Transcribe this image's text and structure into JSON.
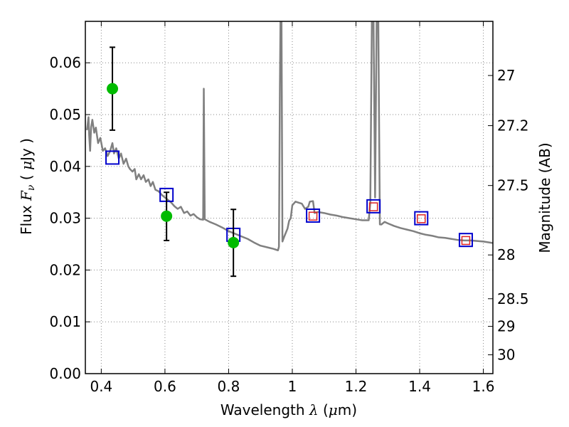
{
  "chart_data": {
    "type": "line",
    "xlabel": {
      "prefix": "Wavelength",
      "symbol": "λ",
      "open": "(",
      "unit_greek": "μ",
      "unit": "m",
      "close": ")"
    },
    "ylabel": {
      "prefix": "Flux",
      "symbol": "F",
      "subscript": "ν",
      "open": "(",
      "unit_greek": "μ",
      "unit": "Jy",
      "close": ")"
    },
    "y2label": "Magnitude (AB)",
    "xlim": [
      0.35,
      1.63
    ],
    "ylim": [
      0.0,
      0.068
    ],
    "grid": true,
    "x_ticks": [
      {
        "value": 0.4,
        "label": "0.4"
      },
      {
        "value": 0.6,
        "label": "0.6"
      },
      {
        "value": 0.8,
        "label": "0.8"
      },
      {
        "value": 1.0,
        "label": "1"
      },
      {
        "value": 1.2,
        "label": "1.2"
      },
      {
        "value": 1.4,
        "label": "1.4"
      },
      {
        "value": 1.6,
        "label": "1.6"
      }
    ],
    "y_ticks": [
      {
        "value": 0.0,
        "label": "0.00"
      },
      {
        "value": 0.01,
        "label": "0.01"
      },
      {
        "value": 0.02,
        "label": "0.02"
      },
      {
        "value": 0.03,
        "label": "0.03"
      },
      {
        "value": 0.04,
        "label": "0.04"
      },
      {
        "value": 0.05,
        "label": "0.05"
      },
      {
        "value": 0.06,
        "label": "0.06"
      }
    ],
    "y2_ticks": [
      {
        "value": 27.0,
        "label": "27"
      },
      {
        "value": 27.2,
        "label": "27.2"
      },
      {
        "value": 27.5,
        "label": "27.5"
      },
      {
        "value": 28.0,
        "label": "28"
      },
      {
        "value": 28.5,
        "label": "28.5"
      },
      {
        "value": 29.0,
        "label": "29"
      },
      {
        "value": 30.0,
        "label": "30"
      }
    ],
    "colors": {
      "spectrum": "#808080",
      "observed": "#00bb00",
      "errorbar": "#000000",
      "model_outer": "#0000cc",
      "model_inner": "#dd2222",
      "grid": "#888888"
    },
    "series": [
      {
        "kind": "spectrum",
        "points": [
          [
            0.355,
            0.047
          ],
          [
            0.36,
            0.0495
          ],
          [
            0.362,
            0.046
          ],
          [
            0.365,
            0.043
          ],
          [
            0.368,
            0.0475
          ],
          [
            0.372,
            0.049
          ],
          [
            0.378,
            0.0465
          ],
          [
            0.383,
            0.0475
          ],
          [
            0.39,
            0.0445
          ],
          [
            0.397,
            0.0455
          ],
          [
            0.405,
            0.043
          ],
          [
            0.412,
            0.0435
          ],
          [
            0.42,
            0.042
          ],
          [
            0.428,
            0.043
          ],
          [
            0.435,
            0.0445
          ],
          [
            0.44,
            0.0425
          ],
          [
            0.447,
            0.0435
          ],
          [
            0.455,
            0.0415
          ],
          [
            0.462,
            0.0425
          ],
          [
            0.47,
            0.0405
          ],
          [
            0.478,
            0.0415
          ],
          [
            0.485,
            0.04
          ],
          [
            0.49,
            0.0395
          ],
          [
            0.498,
            0.039
          ],
          [
            0.505,
            0.0395
          ],
          [
            0.51,
            0.0375
          ],
          [
            0.518,
            0.0385
          ],
          [
            0.525,
            0.0375
          ],
          [
            0.533,
            0.0383
          ],
          [
            0.54,
            0.037
          ],
          [
            0.548,
            0.0375
          ],
          [
            0.555,
            0.0362
          ],
          [
            0.562,
            0.037
          ],
          [
            0.57,
            0.0355
          ],
          [
            0.58,
            0.0352
          ],
          [
            0.59,
            0.0345
          ],
          [
            0.6,
            0.034
          ],
          [
            0.61,
            0.0335
          ],
          [
            0.62,
            0.033
          ],
          [
            0.63,
            0.0323
          ],
          [
            0.64,
            0.0318
          ],
          [
            0.65,
            0.0322
          ],
          [
            0.66,
            0.031
          ],
          [
            0.67,
            0.0313
          ],
          [
            0.68,
            0.0305
          ],
          [
            0.69,
            0.0308
          ],
          [
            0.7,
            0.0302
          ],
          [
            0.71,
            0.0298
          ],
          [
            0.72,
            0.0297
          ],
          [
            0.722,
            0.055
          ],
          [
            0.725,
            0.0298
          ],
          [
            0.74,
            0.0293
          ],
          [
            0.76,
            0.0288
          ],
          [
            0.78,
            0.0282
          ],
          [
            0.8,
            0.0275
          ],
          [
            0.82,
            0.027
          ],
          [
            0.84,
            0.0265
          ],
          [
            0.86,
            0.026
          ],
          [
            0.88,
            0.0253
          ],
          [
            0.9,
            0.0247
          ],
          [
            0.92,
            0.0244
          ],
          [
            0.94,
            0.0241
          ],
          [
            0.955,
            0.0238
          ],
          [
            0.958,
            0.0245
          ],
          [
            0.961,
            0.055
          ],
          [
            0.963,
            0.069
          ],
          [
            0.966,
            0.069
          ],
          [
            0.969,
            0.0255
          ],
          [
            0.975,
            0.0265
          ],
          [
            0.985,
            0.028
          ],
          [
            0.99,
            0.0295
          ],
          [
            0.995,
            0.03
          ],
          [
            1.0,
            0.0325
          ],
          [
            1.01,
            0.0332
          ],
          [
            1.02,
            0.033
          ],
          [
            1.03,
            0.0328
          ],
          [
            1.04,
            0.0318
          ],
          [
            1.05,
            0.0322
          ],
          [
            1.055,
            0.0332
          ],
          [
            1.065,
            0.0333
          ],
          [
            1.07,
            0.031
          ],
          [
            1.08,
            0.0312
          ],
          [
            1.1,
            0.031
          ],
          [
            1.12,
            0.0307
          ],
          [
            1.14,
            0.0305
          ],
          [
            1.16,
            0.0302
          ],
          [
            1.18,
            0.03
          ],
          [
            1.2,
            0.0298
          ],
          [
            1.22,
            0.0296
          ],
          [
            1.24,
            0.0296
          ],
          [
            1.245,
            0.033
          ],
          [
            1.25,
            0.069
          ],
          [
            1.255,
            0.069
          ],
          [
            1.26,
            0.034
          ],
          [
            1.265,
            0.069
          ],
          [
            1.27,
            0.069
          ],
          [
            1.275,
            0.0288
          ],
          [
            1.28,
            0.0288
          ],
          [
            1.29,
            0.0293
          ],
          [
            1.3,
            0.029
          ],
          [
            1.32,
            0.0285
          ],
          [
            1.34,
            0.0281
          ],
          [
            1.36,
            0.0278
          ],
          [
            1.38,
            0.0275
          ],
          [
            1.4,
            0.0271
          ],
          [
            1.42,
            0.0268
          ],
          [
            1.44,
            0.0266
          ],
          [
            1.46,
            0.0263
          ],
          [
            1.48,
            0.0262
          ],
          [
            1.5,
            0.026
          ],
          [
            1.52,
            0.0258
          ],
          [
            1.54,
            0.0257
          ],
          [
            1.56,
            0.0257
          ],
          [
            1.58,
            0.0256
          ],
          [
            1.6,
            0.0255
          ],
          [
            1.63,
            0.0252
          ]
        ]
      },
      {
        "kind": "observed",
        "points": [
          {
            "x": 0.435,
            "y": 0.055,
            "ylo": 0.047,
            "yhi": 0.063
          },
          {
            "x": 0.605,
            "y": 0.0304,
            "ylo": 0.0257,
            "yhi": 0.035
          },
          {
            "x": 0.815,
            "y": 0.0253,
            "ylo": 0.0188,
            "yhi": 0.0317
          }
        ]
      },
      {
        "kind": "model_blue",
        "points": [
          {
            "x": 0.435,
            "y": 0.0417
          },
          {
            "x": 0.605,
            "y": 0.0345
          },
          {
            "x": 0.815,
            "y": 0.0268
          },
          {
            "x": 1.065,
            "y": 0.0305
          },
          {
            "x": 1.255,
            "y": 0.0323
          },
          {
            "x": 1.405,
            "y": 0.03
          },
          {
            "x": 1.545,
            "y": 0.0258
          }
        ]
      },
      {
        "kind": "model_red",
        "points": [
          {
            "x": 1.065,
            "y": 0.0304
          },
          {
            "x": 1.255,
            "y": 0.0322
          },
          {
            "x": 1.405,
            "y": 0.0299
          },
          {
            "x": 1.545,
            "y": 0.0257
          }
        ]
      }
    ]
  }
}
